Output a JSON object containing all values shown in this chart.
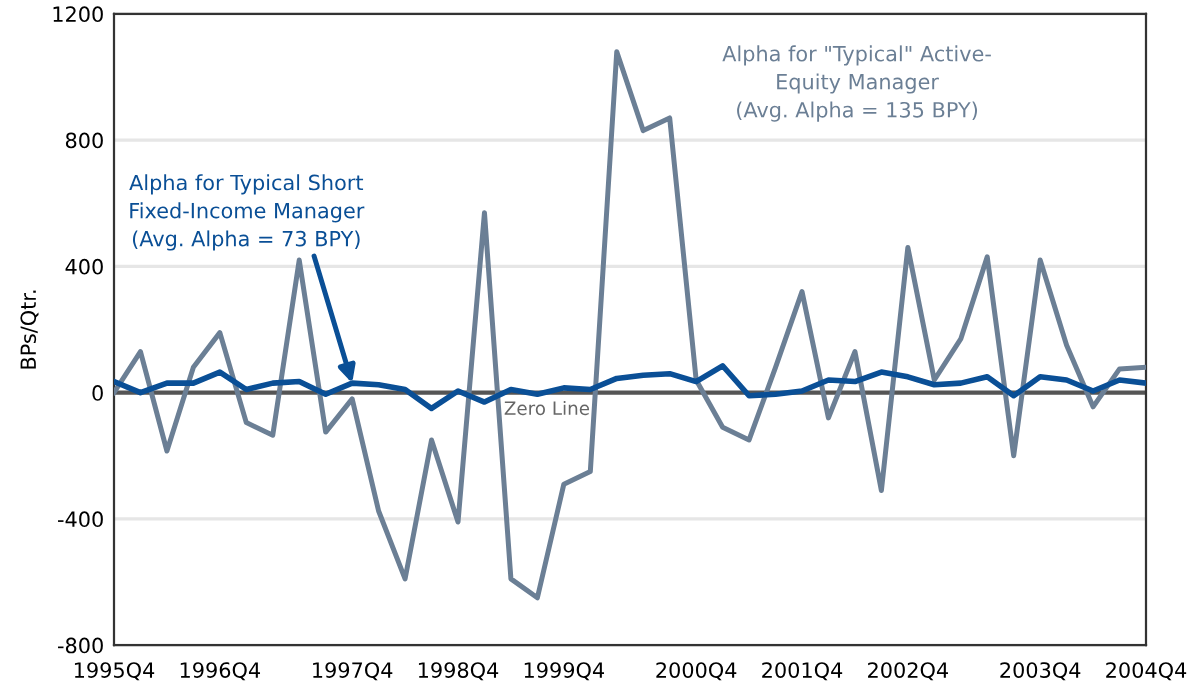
{
  "chart_data": {
    "type": "line",
    "ylabel": "BPs/Qtr.",
    "categories": [
      "1995Q4",
      null,
      null,
      null,
      "1996Q4",
      null,
      null,
      null,
      null,
      "1997Q4",
      null,
      null,
      null,
      "1998Q4",
      null,
      null,
      null,
      "1999Q4",
      null,
      null,
      null,
      null,
      "2000Q4",
      null,
      null,
      null,
      "2001Q4",
      null,
      null,
      null,
      "2002Q4",
      null,
      null,
      null,
      null,
      "2003Q4",
      null,
      null,
      null,
      "2004Q4"
    ],
    "ylim": [
      -800,
      1200
    ],
    "yticks": [
      -800,
      -400,
      0,
      400,
      800,
      1200
    ],
    "grid": "y",
    "series": [
      {
        "color": "#6b7f95",
        "values": [
          0,
          130,
          -185,
          80,
          190,
          -95,
          -135,
          420,
          -125,
          -20,
          -375,
          -590,
          -150,
          -410,
          570,
          -590,
          -650,
          -290,
          -250,
          1080,
          830,
          870,
          40,
          -110,
          -150,
          80,
          320,
          -80,
          130,
          -310,
          460,
          40,
          170,
          430,
          -200,
          420,
          150,
          -45,
          75,
          80
        ]
      },
      {
        "color": "#0a4f96",
        "values": [
          35,
          0,
          30,
          30,
          65,
          10,
          30,
          35,
          -5,
          30,
          25,
          10,
          -50,
          5,
          -30,
          10,
          -5,
          15,
          10,
          45,
          55,
          60,
          35,
          85,
          -10,
          -5,
          5,
          40,
          35,
          65,
          50,
          25,
          30,
          50,
          -10,
          50,
          40,
          5,
          40,
          30
        ]
      }
    ],
    "ref_lines": [
      {
        "axis": "y",
        "value": 0,
        "label": "Zero Line",
        "color": "#555555"
      }
    ],
    "annotations": [
      "Alpha for \"Typical\" Active-\nEquity Manager\n(Avg. Alpha = 135 BPY)",
      {
        "text": "Alpha for Typical Short\nFixed-Income Manager\n(Avg. Alpha = 73 BPY)",
        "x": "1997Q4",
        "y": 30
      }
    ]
  }
}
